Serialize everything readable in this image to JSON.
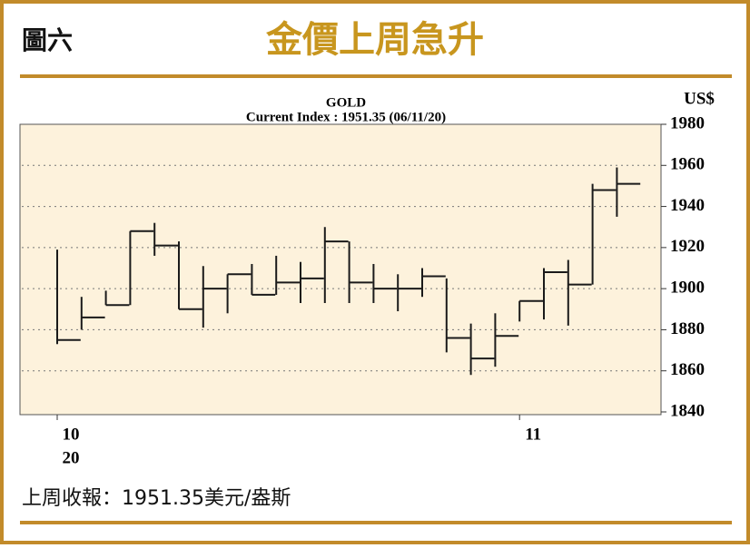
{
  "header": {
    "figure_label": "圖六",
    "title": "金價上周急升"
  },
  "footnote": "上周收報：1951.35美元/盎斯",
  "chart_data": {
    "type": "ohlc",
    "title": "GOLD",
    "subtitle": "Current Index : 1951.35 (06/11/20)",
    "y_unit": "US$",
    "categories": [
      "10",
      null,
      null,
      null,
      null,
      null,
      null,
      null,
      null,
      null,
      null,
      null,
      null,
      null,
      null,
      null,
      null,
      null,
      null,
      "11",
      null,
      null,
      null,
      null
    ],
    "x_year_label": "20",
    "high": [
      1919,
      1896,
      1899,
      1928,
      1932,
      1923,
      1911,
      1907,
      1912,
      1916,
      1913,
      1930,
      1923,
      1912,
      1907,
      1910,
      1905,
      1883,
      1888,
      1894,
      1910,
      1914,
      1951,
      1959
    ],
    "low": [
      1873,
      1880,
      1892,
      1892,
      1916,
      1890,
      1881,
      1888,
      1897,
      1897,
      1893,
      1893,
      1893,
      1893,
      1889,
      1896,
      1869,
      1858,
      1862,
      1884,
      1885,
      1882,
      1902,
      1935
    ],
    "close": [
      1875,
      1886,
      1892,
      1928,
      1921,
      1890,
      1900,
      1907,
      1897,
      1903,
      1905,
      1923,
      1903,
      1900,
      1900,
      1906,
      1876,
      1866,
      1877,
      1894,
      1908,
      1902,
      1948,
      1951
    ],
    "color": "#1a1a1a",
    "plot_background": "#fdf2dc",
    "ylim": [
      1840,
      1980
    ],
    "yticks": [
      1840,
      1860,
      1880,
      1900,
      1920,
      1940,
      1960,
      1980
    ],
    "grid": true
  }
}
